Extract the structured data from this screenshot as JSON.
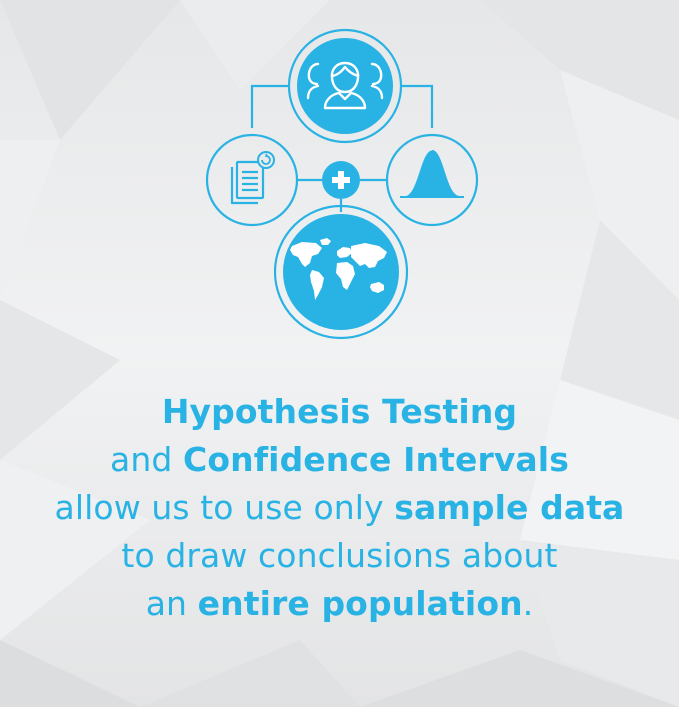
{
  "colors": {
    "accent": "#29b2e4",
    "background": "#e9eaeb"
  },
  "diagram": {
    "icons": [
      "people-group-icon",
      "document-refresh-icon",
      "plus-icon",
      "bell-curve-icon",
      "world-map-icon"
    ]
  },
  "caption": {
    "line1": {
      "bold": "Hypothesis Testing"
    },
    "line2": {
      "pre": "and ",
      "bold": "Confidence Intervals"
    },
    "line3": {
      "pre": "allow us to use only ",
      "bold": "sample data"
    },
    "line4": {
      "text": "to draw conclusions about"
    },
    "line5": {
      "pre": "an ",
      "bold": "entire population",
      "post": "."
    }
  }
}
